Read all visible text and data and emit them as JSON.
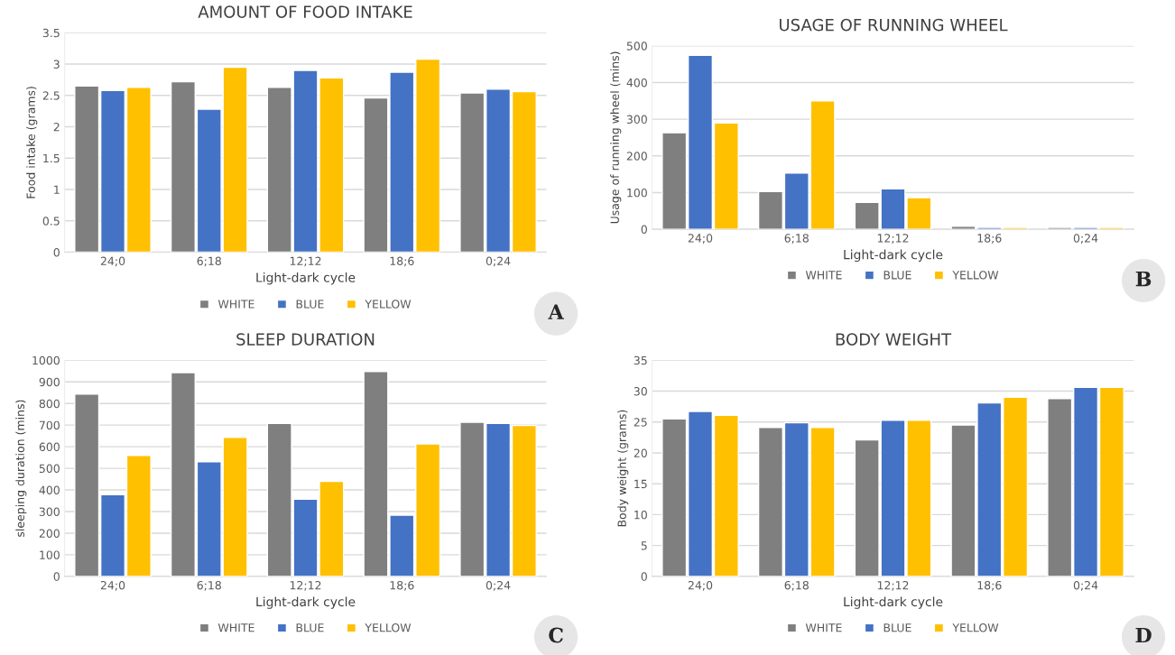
{
  "chart_data": [
    {
      "type": "bar",
      "title": "AMOUNT OF FOOD INTAKE",
      "xlabel": "Light-dark cycle",
      "ylabel": "Food intake (grams)",
      "categories": [
        "24;0",
        "6;18",
        "12;12",
        "18;6",
        "0;24"
      ],
      "series": [
        {
          "name": "WHITE",
          "color": "#7f7f7f",
          "values": [
            2.65,
            2.72,
            2.63,
            2.46,
            2.54
          ]
        },
        {
          "name": "BLUE",
          "color": "#4472c4",
          "values": [
            2.58,
            2.28,
            2.9,
            2.87,
            2.6
          ]
        },
        {
          "name": "YELLOW",
          "color": "#ffc000",
          "values": [
            2.63,
            2.95,
            2.78,
            3.08,
            2.56
          ]
        }
      ],
      "ylim": [
        0,
        3.5
      ],
      "yticks": [
        0,
        0.5,
        1,
        1.5,
        2,
        2.5,
        3,
        3.5
      ],
      "grid": "y",
      "legend": "bottom",
      "annotations": [
        "A"
      ]
    },
    {
      "type": "bar",
      "title": "USAGE OF RUNNING WHEEL",
      "xlabel": "Light-dark cycle",
      "ylabel": "Usage of running wheel (mins)",
      "categories": [
        "24;0",
        "6;18",
        "12;12",
        "18;6",
        "0;24"
      ],
      "series": [
        {
          "name": "WHITE",
          "color": "#7f7f7f",
          "values": [
            263,
            103,
            73,
            8,
            5
          ]
        },
        {
          "name": "BLUE",
          "color": "#4472c4",
          "values": [
            474,
            153,
            110,
            5,
            5
          ]
        },
        {
          "name": "YELLOW",
          "color": "#ffc000",
          "values": [
            290,
            350,
            86,
            5,
            5
          ]
        }
      ],
      "ylim": [
        0,
        500
      ],
      "yticks": [
        0,
        100,
        200,
        300,
        400,
        500
      ],
      "grid": "y",
      "legend": "bottom",
      "annotations": [
        "B"
      ]
    },
    {
      "type": "bar",
      "title": "SLEEP DURATION",
      "xlabel": "Light-dark cycle",
      "ylabel": "sleeping duration (mins)",
      "categories": [
        "24;0",
        "6;18",
        "12;12",
        "18;6",
        "0;24"
      ],
      "series": [
        {
          "name": "WHITE",
          "color": "#7f7f7f",
          "values": [
            843,
            943,
            708,
            948,
            713
          ]
        },
        {
          "name": "BLUE",
          "color": "#4472c4",
          "values": [
            378,
            530,
            357,
            283,
            708
          ]
        },
        {
          "name": "YELLOW",
          "color": "#ffc000",
          "values": [
            560,
            643,
            440,
            613,
            698
          ]
        }
      ],
      "ylim": [
        0,
        1000
      ],
      "yticks": [
        0,
        100,
        200,
        300,
        400,
        500,
        600,
        700,
        800,
        900,
        1000
      ],
      "grid": "y",
      "legend": "bottom",
      "annotations": [
        "C"
      ]
    },
    {
      "type": "bar",
      "title": "BODY WEIGHT",
      "xlabel": "Light-dark cycle",
      "ylabel": "Body weight (grams)",
      "categories": [
        "24;0",
        "6;18",
        "12;12",
        "18;6",
        "0;24"
      ],
      "series": [
        {
          "name": "WHITE",
          "color": "#7f7f7f",
          "values": [
            25.5,
            24.1,
            22.1,
            24.5,
            28.8
          ]
        },
        {
          "name": "BLUE",
          "color": "#4472c4",
          "values": [
            26.7,
            24.9,
            25.3,
            28.1,
            30.6
          ]
        },
        {
          "name": "YELLOW",
          "color": "#ffc000",
          "values": [
            26.1,
            24.1,
            25.3,
            29.0,
            30.6
          ]
        }
      ],
      "ylim": [
        0,
        35
      ],
      "yticks": [
        0,
        5,
        10,
        15,
        20,
        25,
        30,
        35
      ],
      "grid": "y",
      "legend": "bottom",
      "annotations": [
        "D"
      ]
    }
  ]
}
